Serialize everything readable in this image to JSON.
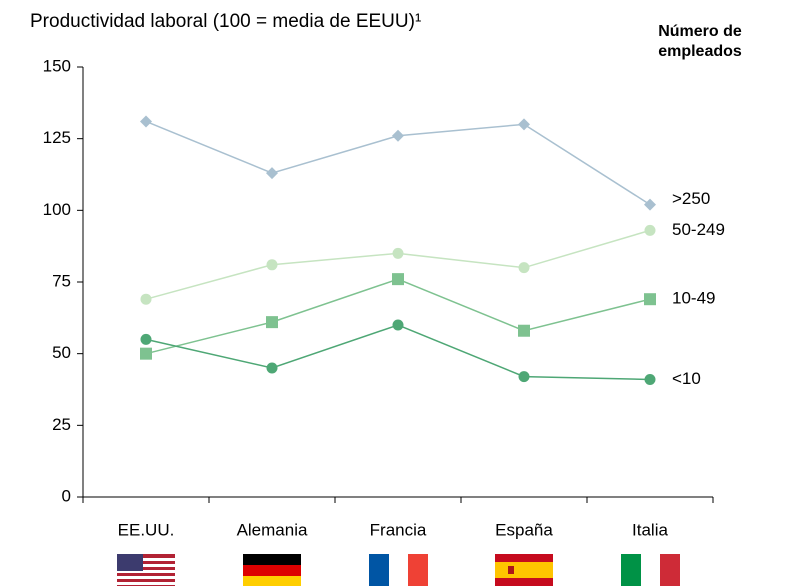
{
  "chart_data": {
    "type": "line",
    "title": "Productividad laboral (100 = media de EEUU)¹",
    "legend_title": [
      "Número de",
      "empleados"
    ],
    "categories": [
      "EE.UU.",
      "Alemania",
      "Francia",
      "España",
      "Italia"
    ],
    "series": [
      {
        "name": ">250",
        "color": "#a9c0d0",
        "marker": "diamond",
        "values": [
          131,
          113,
          126,
          130,
          102
        ]
      },
      {
        "name": "50-249",
        "color": "#c6e4c1",
        "marker": "circle",
        "values": [
          69,
          81,
          85,
          80,
          93
        ]
      },
      {
        "name": "10-49",
        "color": "#7ec290",
        "marker": "square",
        "values": [
          50,
          61,
          76,
          58,
          69
        ]
      },
      {
        "name": "<10",
        "color": "#4ea775",
        "marker": "circle",
        "values": [
          55,
          45,
          60,
          42,
          41
        ]
      }
    ],
    "ylim": [
      0,
      150
    ],
    "yticks": [
      0,
      25,
      50,
      75,
      100,
      125,
      150
    ]
  }
}
